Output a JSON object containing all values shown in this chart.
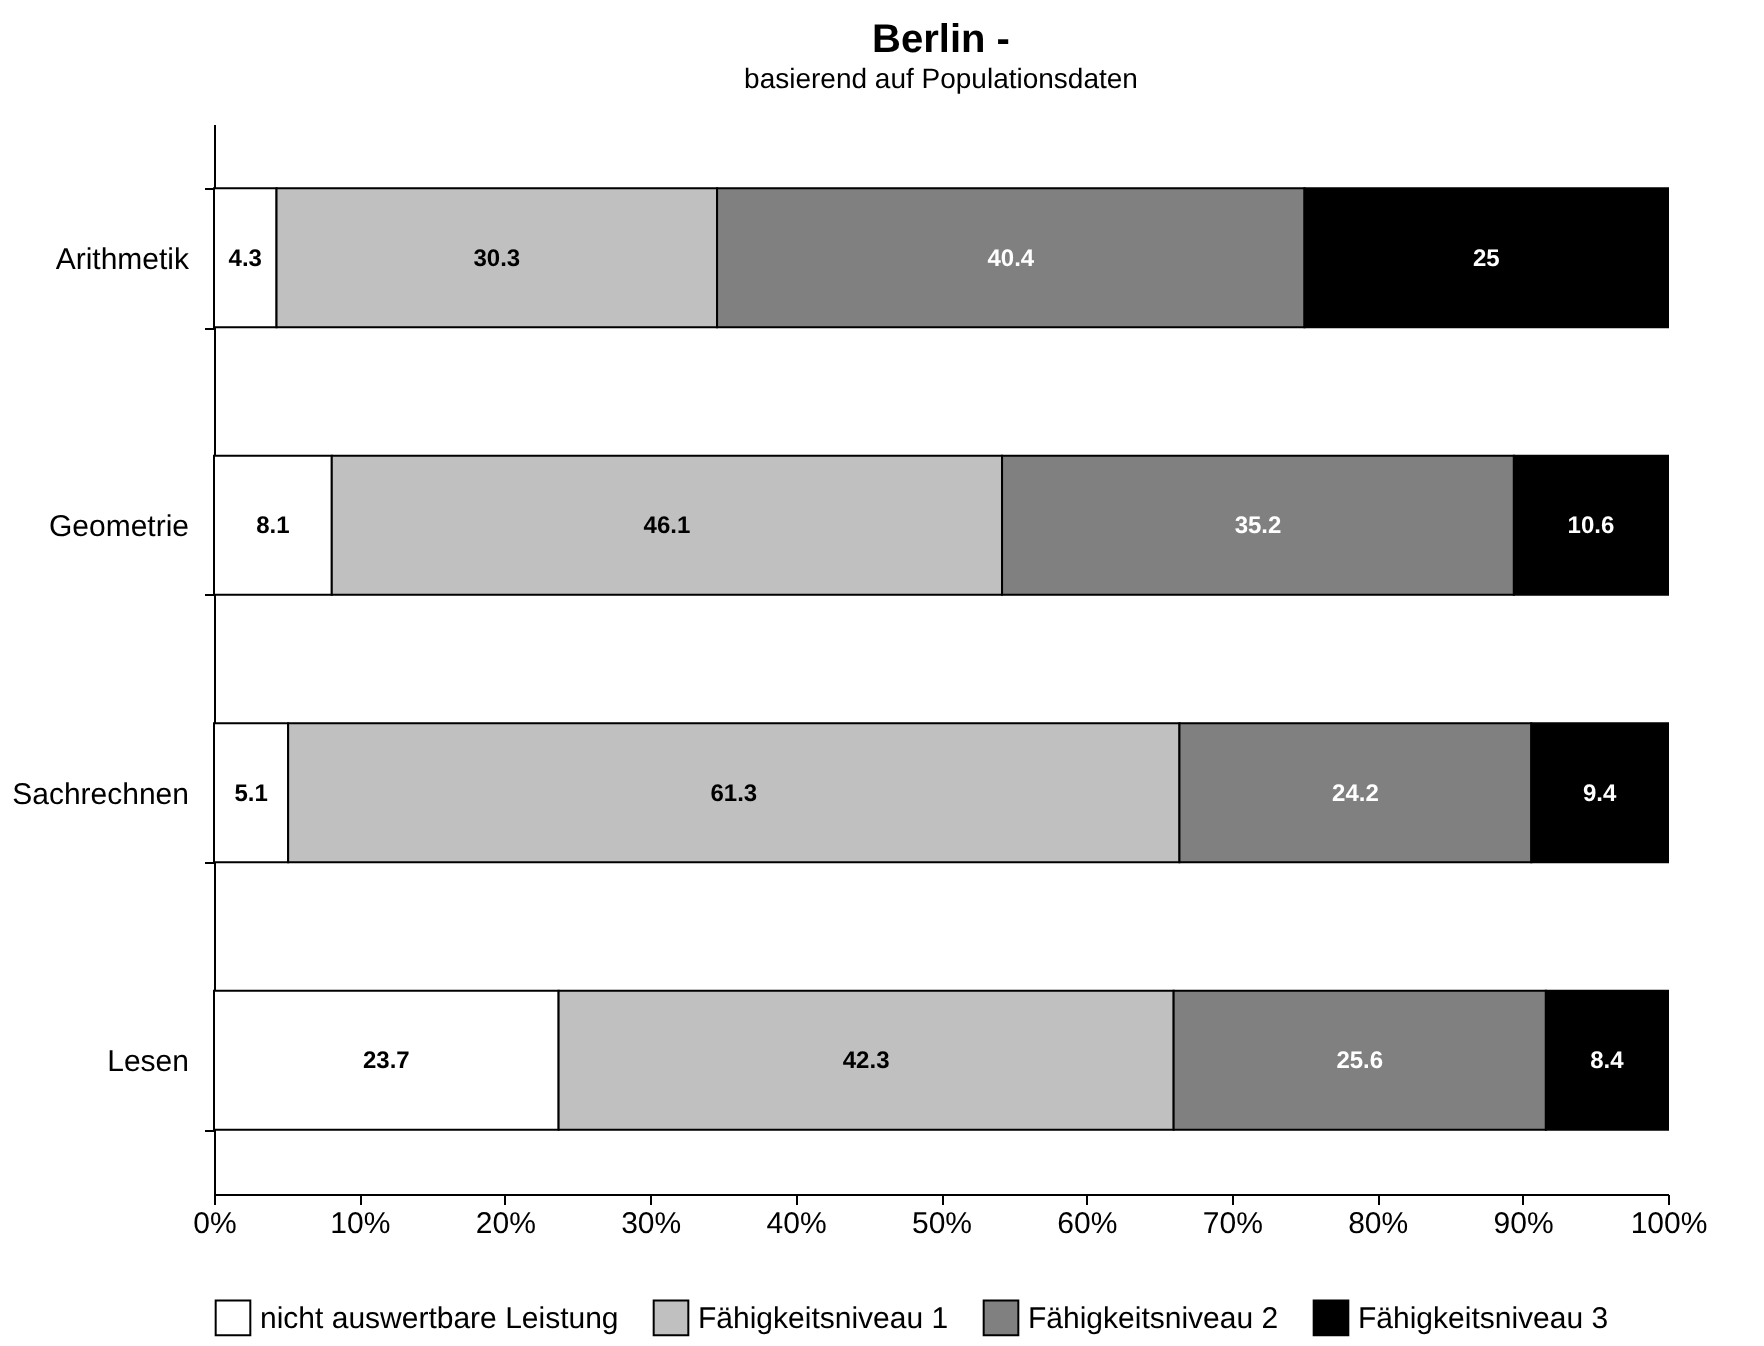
{
  "chart_data": {
    "type": "bar",
    "orientation": "horizontal",
    "stacked": true,
    "title": "Berlin -",
    "subtitle": "basierend auf Populationsdaten",
    "categories": [
      "Arithmetik",
      "Geometrie",
      "Sachrechnen",
      "Lesen"
    ],
    "series": [
      {
        "name": "nicht auswertbare Leistung",
        "color": "#ffffff",
        "values": [
          4.3,
          8.1,
          5.1,
          23.7
        ]
      },
      {
        "name": "Fähigkeitsniveau 1",
        "color": "#c0c0c0",
        "values": [
          30.3,
          46.1,
          61.3,
          42.3
        ]
      },
      {
        "name": "Fähigkeitsniveau 2",
        "color": "#808080",
        "values": [
          40.4,
          35.2,
          24.2,
          25.6
        ]
      },
      {
        "name": "Fähigkeitsniveau 3",
        "color": "#000000",
        "values": [
          25,
          10.6,
          9.4,
          8.4
        ]
      }
    ],
    "xlim": [
      0,
      100
    ],
    "xticks": [
      {
        "value": 0,
        "label": "0%"
      },
      {
        "value": 10,
        "label": "10%"
      },
      {
        "value": 20,
        "label": "20%"
      },
      {
        "value": 30,
        "label": "30%"
      },
      {
        "value": 40,
        "label": "40%"
      },
      {
        "value": 50,
        "label": "50%"
      },
      {
        "value": 60,
        "label": "60%"
      },
      {
        "value": 70,
        "label": "70%"
      },
      {
        "value": 80,
        "label": "80%"
      },
      {
        "value": 90,
        "label": "90%"
      },
      {
        "value": 100,
        "label": "100%"
      }
    ],
    "data_labels": true,
    "legend": "bottom",
    "grid": false
  }
}
